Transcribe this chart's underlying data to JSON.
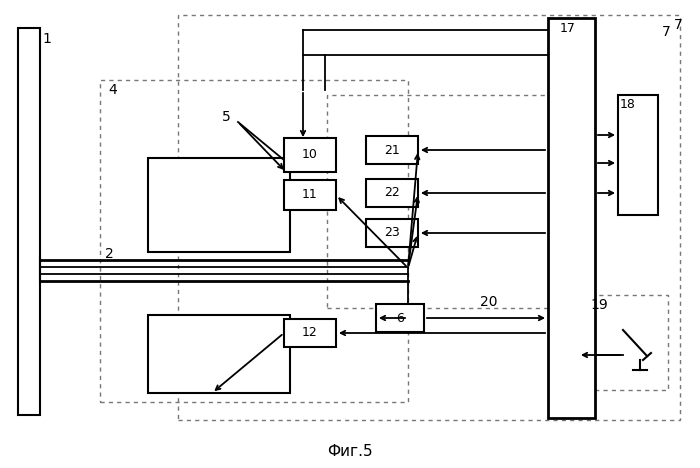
{
  "fig_width": 7.0,
  "fig_height": 4.68,
  "dpi": 100,
  "bg_color": "#ffffff",
  "caption": "Фиг.5"
}
